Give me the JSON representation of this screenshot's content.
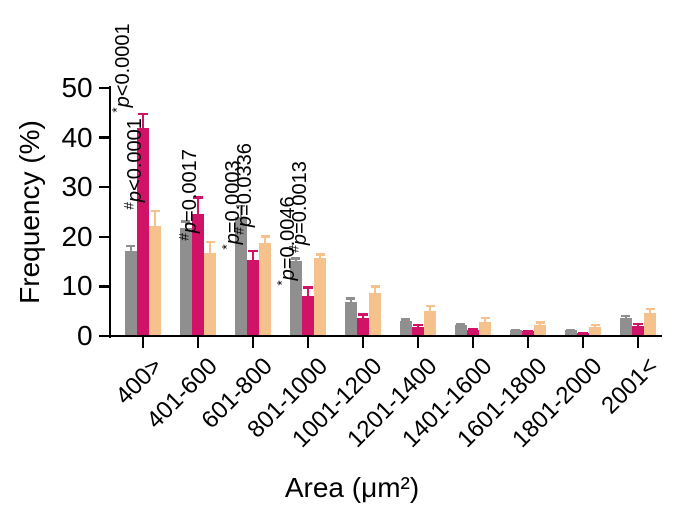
{
  "chart_data": {
    "type": "bar",
    "variant": "grouped-with-error-bars",
    "title": "",
    "xlabel": "Area (μm²)",
    "ylabel": "Frequency (%)",
    "ylim": [
      0,
      50
    ],
    "yticks": [
      0,
      10,
      20,
      30,
      40,
      50
    ],
    "grid": false,
    "legend": "none",
    "categories": [
      "400>",
      "401-600",
      "601-800",
      "801-1000",
      "1001-1200",
      "1201-1400",
      "1401-1600",
      "1601-1800",
      "1801-2000",
      "2001<"
    ],
    "series": [
      {
        "name": "gray-series",
        "color": "#8F8F8F",
        "values": [
          17.2,
          21.7,
          24.0,
          15.1,
          6.8,
          3.1,
          2.2,
          1.2,
          1.2,
          3.6
        ],
        "errors": [
          1.2,
          1.6,
          2.4,
          0.8,
          1.0,
          0.5,
          0.4,
          0.3,
          0.2,
          0.7
        ]
      },
      {
        "name": "crimson-series",
        "color": "#D11368",
        "values": [
          42.0,
          24.5,
          15.4,
          8.0,
          3.7,
          1.8,
          1.2,
          1.0,
          0.6,
          2.0
        ],
        "errors": [
          3.0,
          3.7,
          2.0,
          2.0,
          0.9,
          0.6,
          0.4,
          0.3,
          0.2,
          0.6
        ]
      },
      {
        "name": "light-orange-series",
        "color": "#F5C18C",
        "values": [
          22.2,
          16.8,
          18.7,
          15.8,
          8.6,
          5.0,
          2.8,
          2.2,
          1.9,
          4.6
        ],
        "errors": [
          3.3,
          2.4,
          1.6,
          0.9,
          1.6,
          1.3,
          1.1,
          0.8,
          0.6,
          1.1
        ]
      }
    ],
    "annotations": [
      {
        "group": 0,
        "series": 1,
        "sup": "*",
        "text": "p<0.0001"
      },
      {
        "group": 0,
        "series": 2,
        "sup": "#",
        "text": "p<0.0001"
      },
      {
        "group": 1,
        "series": 2,
        "sup": "#",
        "text": "p=0.0017"
      },
      {
        "group": 2,
        "series": 1,
        "sup": "*",
        "text": "p=0.0003"
      },
      {
        "group": 2,
        "series": 2,
        "sup": "#",
        "text": "p=0.0336"
      },
      {
        "group": 3,
        "series": 1,
        "sup": "*",
        "text": "p=0.0046"
      },
      {
        "group": 3,
        "series": 2,
        "sup": "#",
        "text": "p=0.0013"
      }
    ]
  }
}
